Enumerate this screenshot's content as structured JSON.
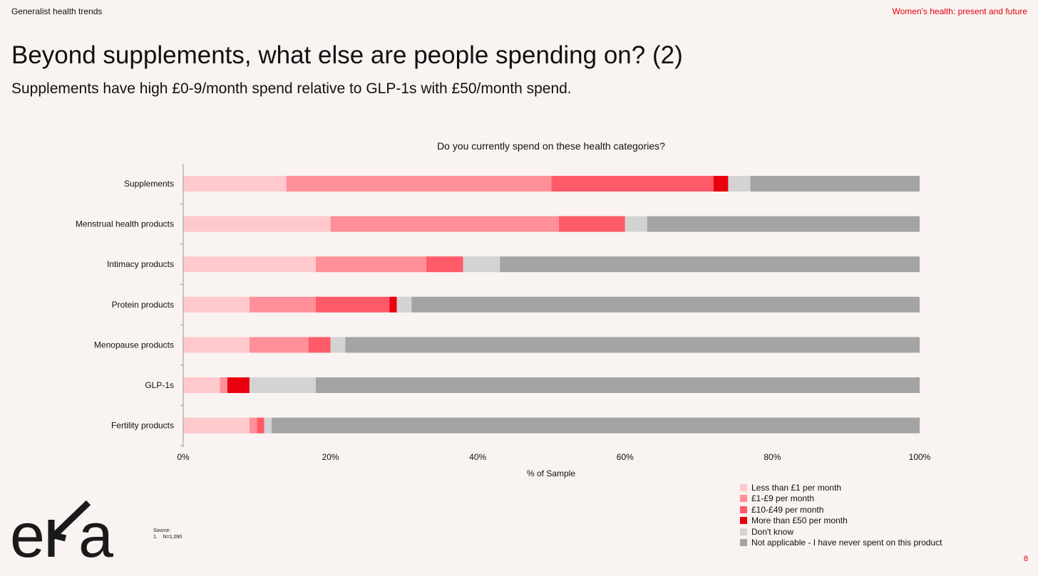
{
  "header": {
    "section": "Generalist health trends",
    "deck_title": "Women's health: present and future"
  },
  "title": "Beyond supplements, what else are people spending on? (2)",
  "subtitle": "Supplements have high £0-9/month spend relative to GLP-1s with £50/month spend.",
  "footer": {
    "source_label": "Source:",
    "source_note": "1.    N=1,090",
    "page_number": "8",
    "logo_text": "eka"
  },
  "chart_data": {
    "type": "bar",
    "orientation": "horizontal",
    "stacked": true,
    "title": "Do you currently spend on these health categories?",
    "xlabel": "% of Sample",
    "ylabel": "",
    "xlim": [
      0,
      100
    ],
    "xticks": [
      "0%",
      "20%",
      "40%",
      "60%",
      "80%",
      "100%"
    ],
    "legend_position": "bottom-right",
    "categories": [
      "Supplements",
      "Menstrual health products",
      "Intimacy products",
      "Protein products",
      "Menopause products",
      "GLP-1s",
      "Fertility products"
    ],
    "series": [
      {
        "name": "Less than £1 per month",
        "color": "#ffc9cd",
        "values": [
          14,
          20,
          18,
          9,
          9,
          5,
          9
        ]
      },
      {
        "name": "£1-£9 per month",
        "color": "#ff8f98",
        "values": [
          36,
          31,
          15,
          9,
          8,
          1,
          1
        ]
      },
      {
        "name": "£10-£49 per month",
        "color": "#ff5a68",
        "values": [
          22,
          9,
          5,
          10,
          3,
          0,
          1
        ]
      },
      {
        "name": "More than £50 per month",
        "color": "#e8000f",
        "values": [
          2,
          0,
          0,
          1,
          0,
          3,
          0
        ]
      },
      {
        "name": "Don't know",
        "color": "#d3d3d3",
        "values": [
          3,
          3,
          5,
          2,
          2,
          9,
          1
        ]
      },
      {
        "name": "Not applicable - I have never spent on this product",
        "color": "#a4a4a4",
        "values": [
          23,
          37,
          57,
          69,
          78,
          82,
          88
        ]
      }
    ]
  }
}
